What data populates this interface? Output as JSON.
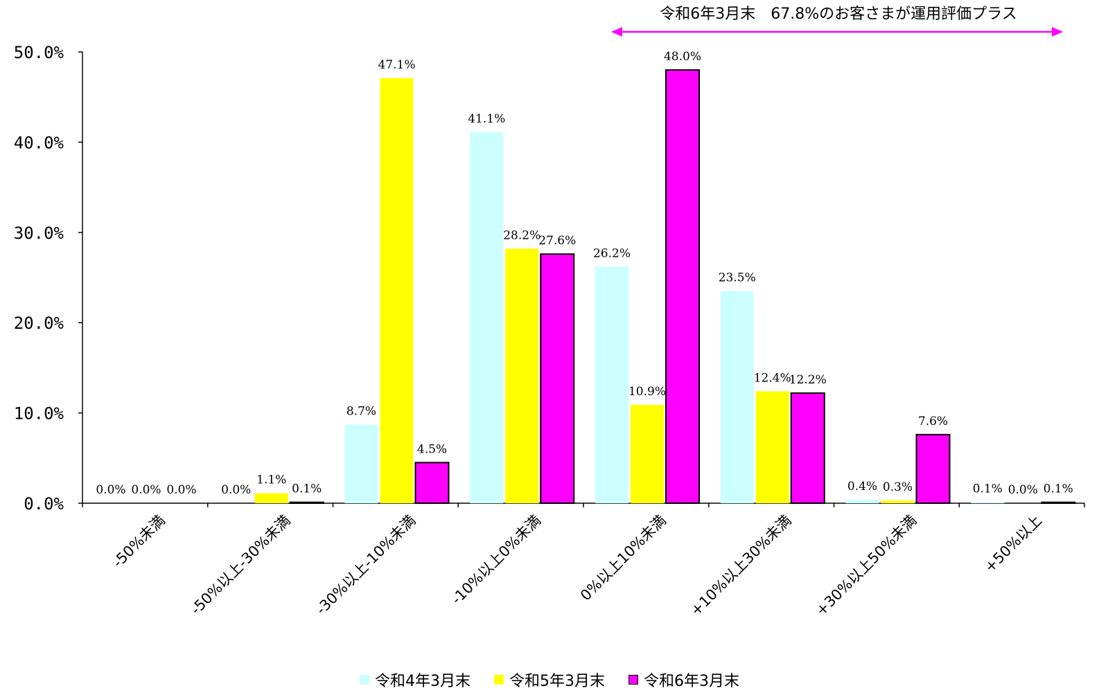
{
  "chart_data": {
    "type": "bar",
    "annotation": "令和6年3月末　67.8%のお客さまが運用評価プラス",
    "categories": [
      "-50%未満",
      "-50%以上-30%未満",
      "-30%以上-10%未満",
      "-10%以上0%未満",
      "0%以上10%未満",
      "+10%以上30%未満",
      "+30%以上50%未満",
      "+50%以上"
    ],
    "series": [
      {
        "name": "令和4年3月末",
        "color": "#ccffff",
        "values": [
          0.0,
          0.0,
          8.7,
          41.1,
          26.2,
          23.5,
          0.4,
          0.1
        ],
        "labels": [
          "0.0%",
          "0.0%",
          "8.7%",
          "41.1%",
          "26.2%",
          "23.5%",
          "0.4%",
          "0.1%"
        ]
      },
      {
        "name": "令和5年3月末",
        "color": "#ffff00",
        "values": [
          0.0,
          1.1,
          47.1,
          28.2,
          10.9,
          12.4,
          0.3,
          0.0
        ],
        "labels": [
          "0.0%",
          "1.1%",
          "47.1%",
          "28.2%",
          "10.9%",
          "12.4%",
          "0.3%",
          "0.0%"
        ]
      },
      {
        "name": "令和6年3月末",
        "color": "#ff00ff",
        "values": [
          0.0,
          0.1,
          4.5,
          27.6,
          48.0,
          12.2,
          7.6,
          0.1
        ],
        "labels": [
          "0.0%",
          "0.1%",
          "4.5%",
          "27.6%",
          "48.0%",
          "12.2%",
          "7.6%",
          "0.1%"
        ]
      }
    ],
    "ylim": [
      0,
      50
    ],
    "yticks": [
      "0.0%",
      "10.0%",
      "20.0%",
      "30.0%",
      "40.0%",
      "50.0%"
    ],
    "grid": false,
    "legend_position": "bottom",
    "arrow_color": "#ff00ff"
  }
}
